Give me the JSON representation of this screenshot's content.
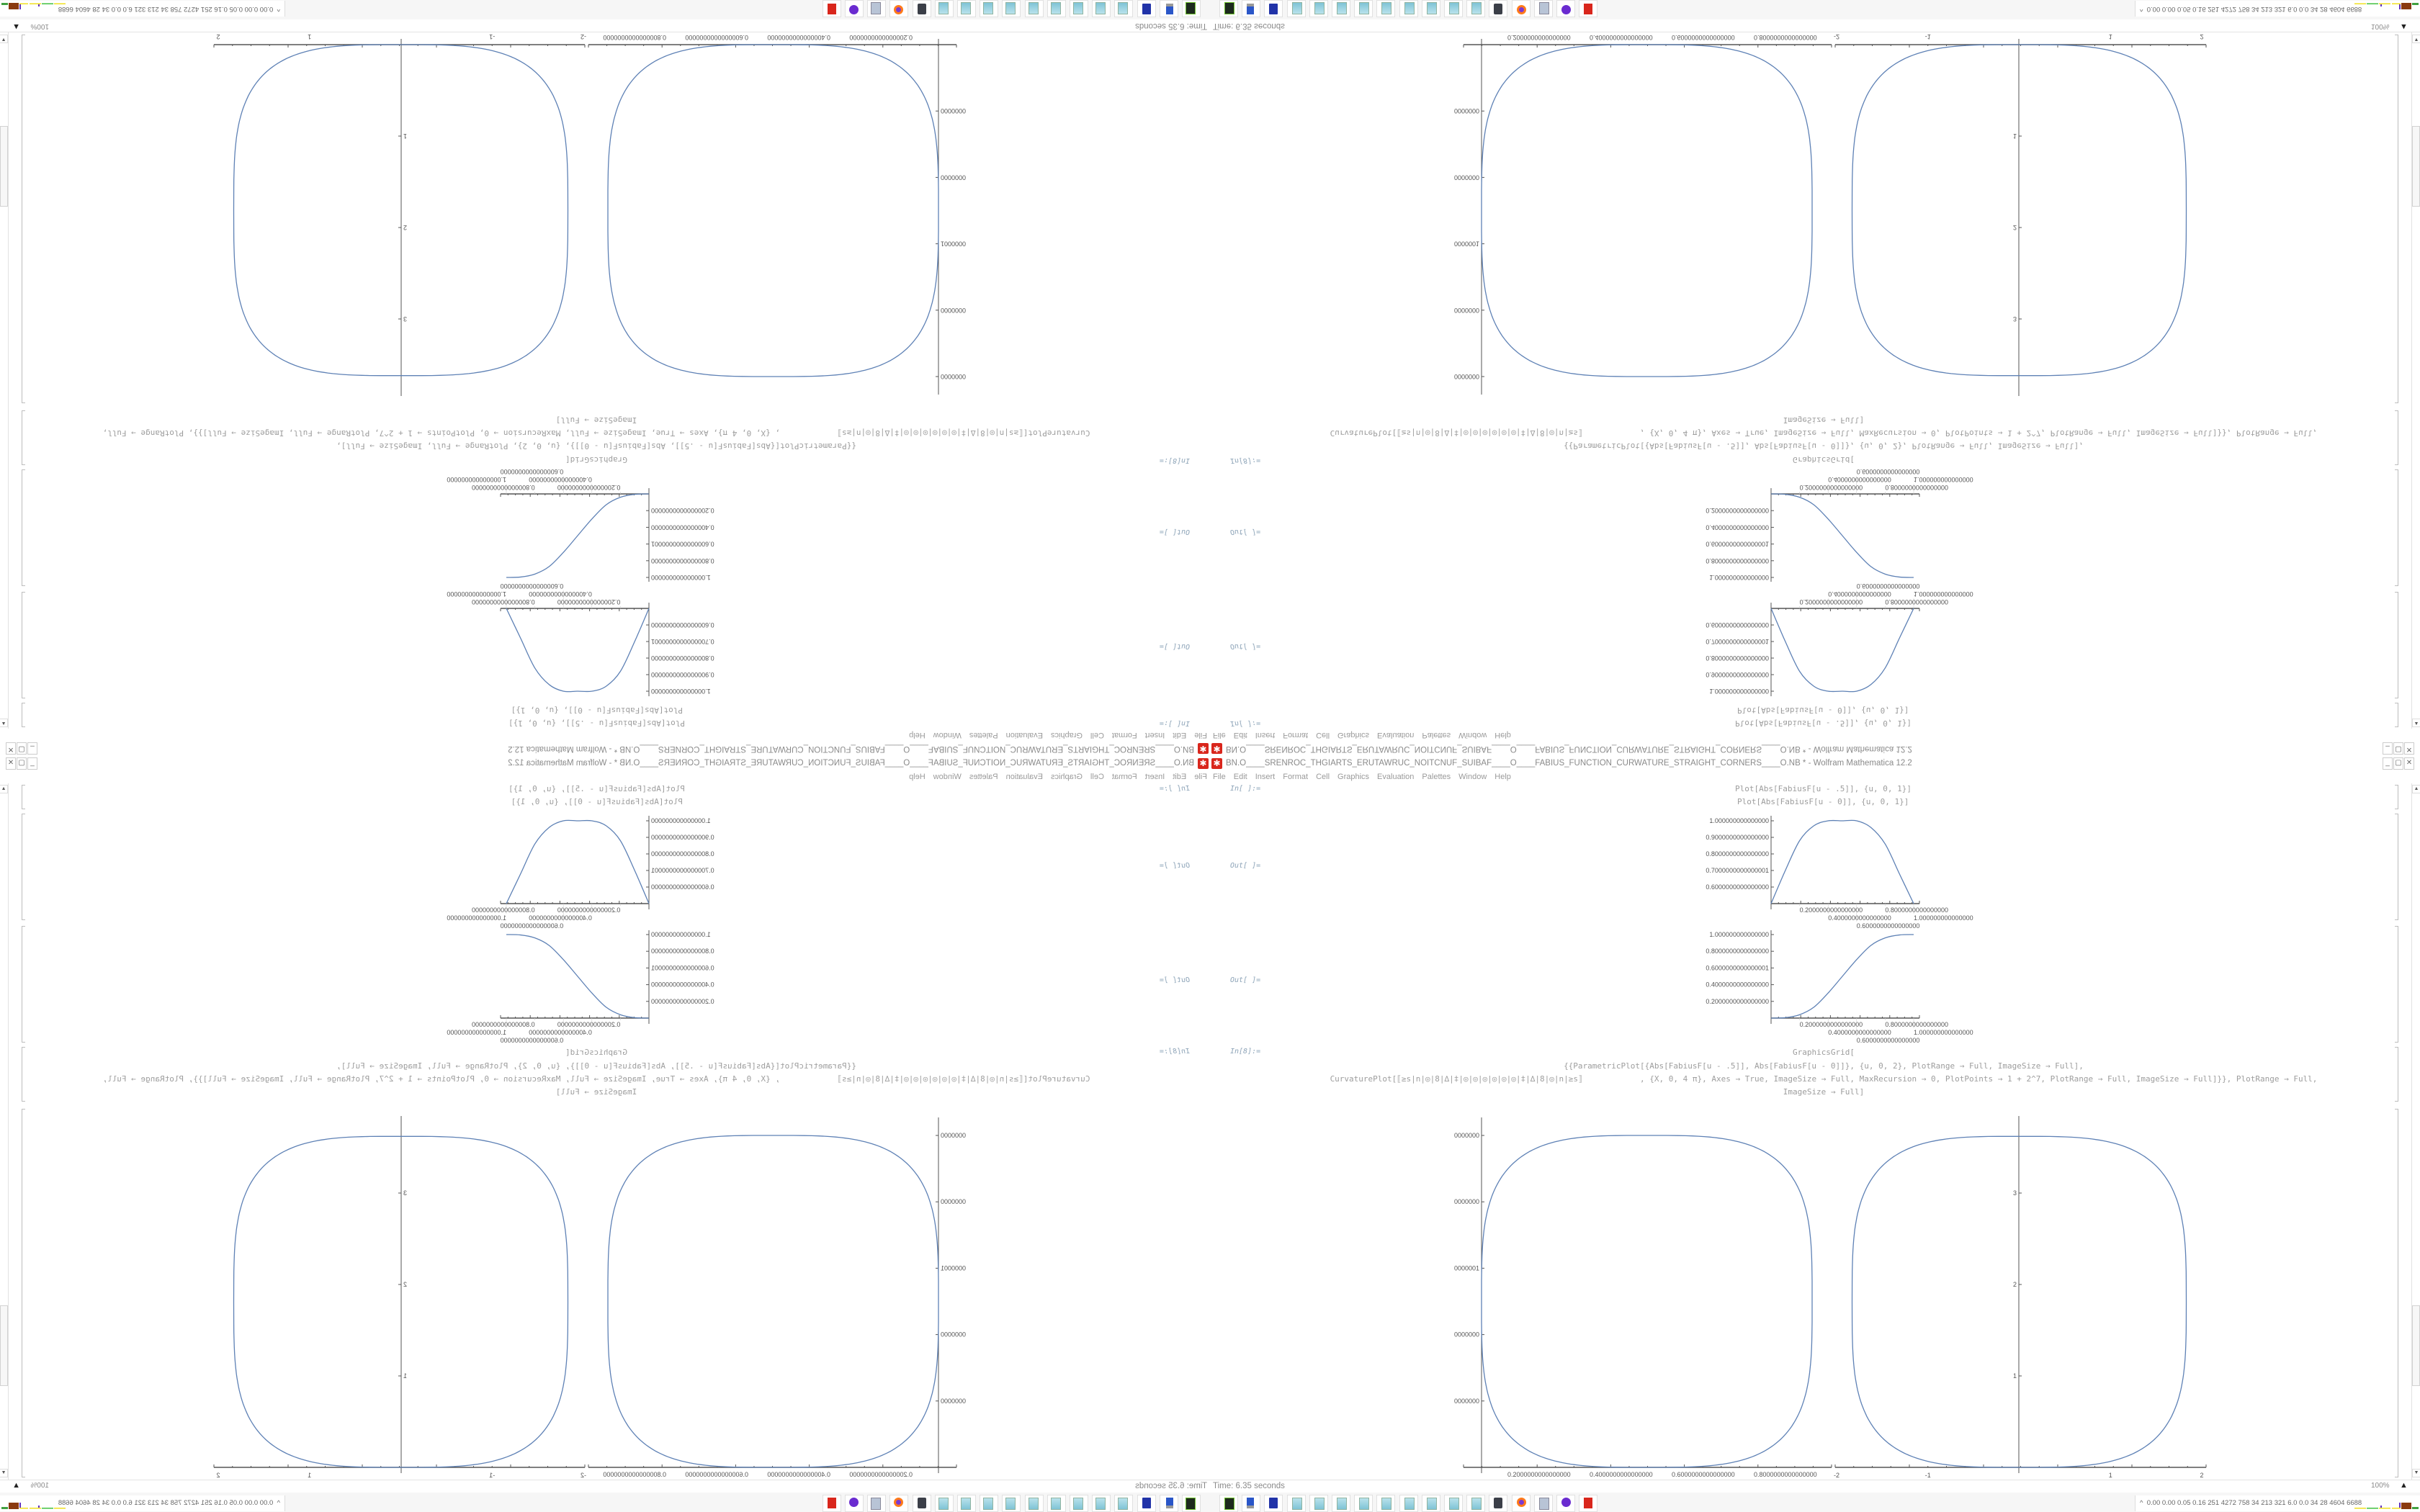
{
  "window": {
    "title": "BN.O____SRENROC_THGIARTS_ERUTAWRUC_NOITCNUF_SUIBAF____O____FABIUS_FUNCTION_CURWATURE_STRAIGHT_CORNERS____O.NB * - Wolfram Mathematica 12.2",
    "app_icon": "mathematica-icon",
    "controls": {
      "minimize": "_",
      "maximize": "▢",
      "close": "✕"
    }
  },
  "menu": [
    "File",
    "Edit",
    "Insert",
    "Format",
    "Cell",
    "Graphics",
    "Evaluation",
    "Palettes",
    "Window",
    "Help"
  ],
  "notebook": {
    "in1_label": "In[ ]:=",
    "in1_lines": [
      "Plot[Abs[FabiusF[u - .5]], {u, 0, 1}]",
      "Plot[Abs[FabiusF[u - 0]], {u, 0, 1}]"
    ],
    "out1_label": "Out[ ]=",
    "out2_label": "Out[ ]=",
    "in2_label": "In[8]:=",
    "in2_lines": [
      "GraphicsGrid[",
      "{{ParametricPlot[{Abs[FabiusF[u - .5]], Abs[FabiusF[u - 0]]}, {u, 0, 2}, PlotRange → Full, ImageSize → Full],",
      "CurvaturePlot[⟦≥s|n|◎|8|∆|‡|◎|◎|◎|◎|◎|◎|‡|∆|8|◎|n|≥s⟧            , {X, 0, 4 π}, Axes → True, ImageSize → Full, MaxRecursion → 0, PlotPoints → 1 + 2^7, PlotRange → Full, ImageSize → Full]}}, PlotRange → Full,",
      "ImageSize → Full]"
    ]
  },
  "status": {
    "time": "Time: 6.35 seconds",
    "zoom": "100%"
  },
  "taskbar": {
    "icons": [
      "terminal-icon",
      "computer-icon",
      "floppy-icon",
      "notepad-icon",
      "notepad-icon",
      "notepad-icon",
      "notepad-icon",
      "notepad-icon",
      "notepad-icon",
      "notepad-icon",
      "notepad-icon",
      "notepad-icon",
      "webcam-icon",
      "firefox-icon",
      "documents-icon",
      "purple-app-icon",
      "mathematica-icon"
    ],
    "tray_chevron": "^",
    "tray_text": "0.00 0.00 0.05 0.16 251 4272 758 34 213 321 6.0 0.0 34 28 4604 6688"
  },
  "colors": {
    "curve": "#5e81b5",
    "axis": "#555555",
    "text": "#9d9d9d",
    "accent": "#d9261c"
  },
  "mirroring": "four copies: original bottom-right, mirrored horizontally bottom-left, vertically top-right, rotated 180° top-left",
  "chart_data": [
    {
      "type": "line",
      "x": [
        0,
        0.1,
        0.2,
        0.3,
        0.4,
        0.5,
        0.6,
        0.7,
        0.8,
        0.9,
        1.0
      ],
      "y": [
        0.5,
        0.7,
        0.88,
        0.97,
        1.0,
        1.0,
        1.0,
        0.96,
        0.86,
        0.68,
        0.5
      ],
      "ylim": [
        0.5,
        1.0
      ],
      "xlim": [
        0,
        1
      ],
      "yticks": [
        1.0,
        0.9,
        0.8,
        0.7,
        0.6
      ],
      "ytick_labels": [
        "1.000000000000000",
        "0.9000000000000000",
        "0.8000000000000000",
        "0.7000000000000001",
        "0.6000000000000000"
      ],
      "xticks": [
        0.2,
        0.4,
        0.6,
        0.8,
        1.0
      ],
      "xtick_labels": [
        "0.2000000000000000",
        "0.4000000000000000",
        "0.6000000000000000",
        "0.8000000000000000",
        "1.000000000000000"
      ]
    },
    {
      "type": "line",
      "x": [
        0,
        0.1,
        0.2,
        0.3,
        0.4,
        0.5,
        0.6,
        0.7,
        0.8,
        0.9,
        1.0
      ],
      "y": [
        0,
        0.005,
        0.04,
        0.13,
        0.3,
        0.5,
        0.7,
        0.87,
        0.96,
        0.995,
        1.0
      ],
      "ylim": [
        0,
        1.0
      ],
      "xlim": [
        0,
        1
      ],
      "yticks": [
        1.0,
        0.8,
        0.6,
        0.4,
        0.2
      ],
      "ytick_labels": [
        "1.000000000000000",
        "0.8000000000000000",
        "0.6000000000000001",
        "0.4000000000000000",
        "0.2000000000000000"
      ],
      "xticks": [
        0.2,
        0.4,
        0.6,
        0.8,
        1.0
      ],
      "xtick_labels": [
        "0.2000000000000000",
        "0.4000000000000000",
        "0.6000000000000000",
        "0.8000000000000000",
        "1.000000000000000"
      ]
    },
    {
      "type": "parametric",
      "shape": {
        "cx": 0.5,
        "cy": 0.5,
        "rx": 0.5,
        "ry": 0.5,
        "exponent": 3.5
      },
      "xlim": [
        0,
        1
      ],
      "ylim": [
        0,
        1.05
      ],
      "yticks": [
        1.0,
        0.8,
        0.6,
        0.4,
        0.2
      ],
      "ytick_labels": [
        "0000000",
        "0000000",
        "0000001",
        "0000000",
        "0000000"
      ],
      "xticks": [
        0.2,
        0.4,
        0.6,
        0.8
      ],
      "xtick_labels": [
        "0.2000000000000000",
        "0.4000000000000000",
        "0.6000000000000000",
        "0.8000000000000000"
      ]
    },
    {
      "type": "parametric",
      "shape": {
        "cx": 0.0,
        "cy": 1.81,
        "rx": 1.83,
        "ry": 1.81,
        "exponent": 3.5
      },
      "xlim": [
        -2,
        2
      ],
      "ylim": [
        0,
        3.83
      ],
      "yticks": [
        1,
        2,
        3
      ],
      "ytick_labels": [
        "1",
        "2",
        "3"
      ],
      "xticks": [
        -2,
        -1,
        1,
        2
      ],
      "xtick_labels": [
        "-2",
        "-1",
        "1",
        "2"
      ]
    }
  ]
}
